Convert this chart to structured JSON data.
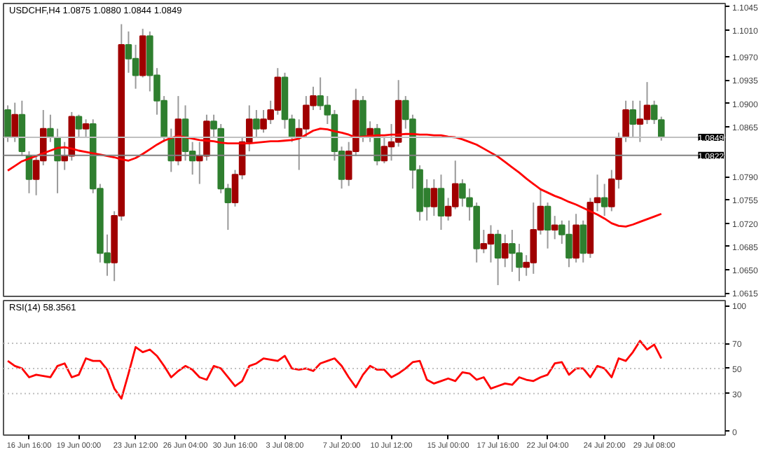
{
  "chart_data": [
    {
      "type": "candlestick",
      "title": "USDCHF,H4 1.0875 1.0880 1.0844 1.0849",
      "tick_labels": "y",
      "categories": [
        null,
        null,
        null,
        null,
        null,
        null,
        null,
        null,
        null,
        null,
        null,
        null,
        null,
        null,
        null,
        null,
        null,
        null,
        null,
        null,
        null,
        null,
        null,
        null,
        null,
        null,
        null,
        null,
        null,
        null,
        null,
        null,
        null,
        null,
        null,
        null,
        null,
        null,
        null,
        null,
        null,
        null,
        null,
        null,
        null,
        null,
        null,
        null,
        null,
        null,
        null,
        null,
        null,
        null,
        null,
        null,
        null,
        null,
        null,
        null,
        null,
        null,
        null,
        null,
        null,
        null,
        null,
        null,
        null,
        null,
        null,
        null,
        null,
        null,
        null,
        null,
        null,
        null,
        null,
        null,
        null,
        null,
        null,
        null,
        null,
        null,
        null,
        null,
        null,
        null,
        null,
        null,
        null
      ],
      "ylim": [
        1.0608,
        1.105
      ],
      "yticks": [
        {
          "value": 1.1045,
          "label": "1.1045"
        },
        {
          "value": 1.101,
          "label": "1.1010"
        },
        {
          "value": 1.097,
          "label": "1.0970"
        },
        {
          "value": 1.0935,
          "label": "1.0935"
        },
        {
          "value": 1.09,
          "label": "1.0900"
        },
        {
          "value": 1.0865,
          "label": "1.0865"
        },
        {
          "value": 1.079,
          "label": "1.0790"
        },
        {
          "value": 1.0755,
          "label": "1.0755"
        },
        {
          "value": 1.072,
          "label": "1.0720"
        },
        {
          "value": 1.0685,
          "label": "1.0685"
        },
        {
          "value": 1.065,
          "label": "1.0650"
        },
        {
          "value": 1.0615,
          "label": "1.0615"
        }
      ],
      "ohlc": [
        [
          1.089,
          1.0897,
          1.0842,
          1.0849
        ],
        [
          1.0849,
          1.0901,
          1.0842,
          1.0883
        ],
        [
          1.0883,
          1.0904,
          1.0821,
          1.0828
        ],
        [
          1.0821,
          1.0828,
          1.0765,
          1.0786
        ],
        [
          1.0786,
          1.0821,
          1.0762,
          1.0814
        ],
        [
          1.0814,
          1.089,
          1.0807,
          1.0862
        ],
        [
          1.0862,
          1.0883,
          1.0842,
          1.0849
        ],
        [
          1.0849,
          1.0862,
          1.0765,
          1.0814
        ],
        [
          1.0814,
          1.0842,
          1.08,
          1.0821
        ],
        [
          1.0821,
          1.0887,
          1.0814,
          1.088
        ],
        [
          1.088,
          1.0883,
          1.0849,
          1.0862
        ],
        [
          1.0862,
          1.0876,
          1.0849,
          1.0869
        ],
        [
          1.0869,
          1.0876,
          1.0765,
          1.0772
        ],
        [
          1.0772,
          1.0779,
          1.0661,
          1.0675
        ],
        [
          1.0675,
          1.0703,
          1.0641,
          1.0661
        ],
        [
          1.0661,
          1.0738,
          1.0633,
          1.0731
        ],
        [
          1.0731,
          1.1019,
          1.0724,
          1.0988
        ],
        [
          1.0988,
          1.1008,
          1.0946,
          1.0967
        ],
        [
          1.0967,
          1.0988,
          1.0922,
          1.0942
        ],
        [
          1.0942,
          1.1012,
          1.0939,
          1.1001
        ],
        [
          1.1001,
          1.1008,
          1.0918,
          1.0942
        ],
        [
          1.0942,
          1.0953,
          1.0883,
          1.0904
        ],
        [
          1.0904,
          1.0911,
          1.0842,
          1.0849
        ],
        [
          1.0849,
          1.0862,
          1.0797,
          1.0814
        ],
        [
          1.0814,
          1.0911,
          1.0807,
          1.0876
        ],
        [
          1.0876,
          1.0897,
          1.0814,
          1.0828
        ],
        [
          1.0828,
          1.0842,
          1.0793,
          1.0814
        ],
        [
          1.0814,
          1.0842,
          1.0779,
          1.0821
        ],
        [
          1.0821,
          1.0883,
          1.0814,
          1.0873
        ],
        [
          1.0873,
          1.0883,
          1.0849,
          1.0862
        ],
        [
          1.0862,
          1.0869,
          1.0765,
          1.0772
        ],
        [
          1.0772,
          1.0779,
          1.071,
          1.0751
        ],
        [
          1.0751,
          1.08,
          1.0745,
          1.0793
        ],
        [
          1.0793,
          1.0849,
          1.0786,
          1.0842
        ],
        [
          1.0842,
          1.0897,
          1.0828,
          1.0876
        ],
        [
          1.0876,
          1.089,
          1.0849,
          1.0862
        ],
        [
          1.0862,
          1.089,
          1.0856,
          1.0876
        ],
        [
          1.0876,
          1.0904,
          1.0869,
          1.089
        ],
        [
          1.089,
          1.0953,
          1.0883,
          1.0939
        ],
        [
          1.0939,
          1.0946,
          1.0862,
          1.0876
        ],
        [
          1.0876,
          1.0883,
          1.0842,
          1.0849
        ],
        [
          1.0849,
          1.0876,
          1.08,
          1.0862
        ],
        [
          1.0862,
          1.0911,
          1.0849,
          1.0897
        ],
        [
          1.0897,
          1.0925,
          1.089,
          1.0911
        ],
        [
          1.0911,
          1.0939,
          1.089,
          1.0897
        ],
        [
          1.0897,
          1.0911,
          1.0869,
          1.0883
        ],
        [
          1.0883,
          1.089,
          1.0814,
          1.0828
        ],
        [
          1.0828,
          1.0835,
          1.0772,
          1.0786
        ],
        [
          1.0786,
          1.0842,
          1.0776,
          1.0828
        ],
        [
          1.0828,
          1.0922,
          1.0821,
          1.0904
        ],
        [
          1.0904,
          1.0911,
          1.0842,
          1.0849
        ],
        [
          1.0849,
          1.0873,
          1.0842,
          1.0862
        ],
        [
          1.0862,
          1.0869,
          1.0807,
          1.0814
        ],
        [
          1.0814,
          1.0849,
          1.081,
          1.0835
        ],
        [
          1.0835,
          1.0869,
          1.0814,
          1.0842
        ],
        [
          1.0842,
          1.0935,
          1.0835,
          1.0904
        ],
        [
          1.0904,
          1.0911,
          1.0862,
          1.0876
        ],
        [
          1.0876,
          1.0883,
          1.0772,
          1.08
        ],
        [
          1.08,
          1.0807,
          1.0724,
          1.0738
        ],
        [
          1.0772,
          1.0786,
          1.0724,
          1.0745
        ],
        [
          1.0745,
          1.0786,
          1.0731,
          1.0772
        ],
        [
          1.0772,
          1.0793,
          1.071,
          1.0731
        ],
        [
          1.0731,
          1.0758,
          1.0724,
          1.0745
        ],
        [
          1.0745,
          1.0814,
          1.0741,
          1.0779
        ],
        [
          1.0779,
          1.0786,
          1.0745,
          1.0758
        ],
        [
          1.0758,
          1.0772,
          1.0724,
          1.0745
        ],
        [
          1.0745,
          1.0751,
          1.0661,
          1.0682
        ],
        [
          1.0682,
          1.071,
          1.0675,
          1.0689
        ],
        [
          1.0689,
          1.0717,
          1.0661,
          1.0703
        ],
        [
          1.0703,
          1.071,
          1.0627,
          1.0668
        ],
        [
          1.0668,
          1.0703,
          1.0654,
          1.0689
        ],
        [
          1.0689,
          1.071,
          1.0647,
          1.0675
        ],
        [
          1.0675,
          1.0689,
          1.0633,
          1.0654
        ],
        [
          1.0654,
          1.0672,
          1.0641,
          1.0661
        ],
        [
          1.0661,
          1.0751,
          1.0644,
          1.071
        ],
        [
          1.071,
          1.0772,
          1.0703,
          1.0745
        ],
        [
          1.0745,
          1.0751,
          1.0682,
          1.071
        ],
        [
          1.071,
          1.0731,
          1.0696,
          1.0717
        ],
        [
          1.0717,
          1.0724,
          1.0689,
          1.0703
        ],
        [
          1.0703,
          1.0724,
          1.0654,
          1.0668
        ],
        [
          1.0668,
          1.0734,
          1.0661,
          1.0717
        ],
        [
          1.0717,
          1.0724,
          1.0661,
          1.0675
        ],
        [
          1.0675,
          1.0758,
          1.0668,
          1.0751
        ],
        [
          1.0751,
          1.0793,
          1.0738,
          1.0758
        ],
        [
          1.0758,
          1.0779,
          1.0731,
          1.0745
        ],
        [
          1.0745,
          1.08,
          1.0738,
          1.0786
        ],
        [
          1.0786,
          1.0856,
          1.0772,
          1.0849
        ],
        [
          1.0849,
          1.0904,
          1.0842,
          1.089
        ],
        [
          1.089,
          1.0904,
          1.0849,
          1.0869
        ],
        [
          1.0869,
          1.0904,
          1.0842,
          1.0876
        ],
        [
          1.0876,
          1.0932,
          1.0869,
          1.0897
        ],
        [
          1.0897,
          1.0904,
          1.0869,
          1.0876
        ],
        [
          1.0875,
          1.088,
          1.0844,
          1.0849
        ]
      ],
      "series": [
        {
          "type": "line",
          "color": "#ff0000",
          "values": [
            1.0799,
            1.0806,
            1.0813,
            1.0817,
            1.0821,
            1.0825,
            1.0829,
            1.0833,
            1.0834,
            1.0832,
            1.0829,
            1.0827,
            1.0825,
            1.0823,
            1.0821,
            1.0819,
            1.0816,
            1.0814,
            1.0818,
            1.0824,
            1.0831,
            1.0838,
            1.0844,
            1.0848,
            1.0851,
            1.0849,
            1.0847,
            1.0845,
            1.0844,
            1.0843,
            1.0841,
            1.084,
            1.084,
            1.084,
            1.084,
            1.0841,
            1.0842,
            1.0843,
            1.0843,
            1.0844,
            1.0845,
            1.0847,
            1.0853,
            1.0859,
            1.0862,
            1.0861,
            1.0858,
            1.0856,
            1.0853,
            1.0849,
            1.085,
            1.0851,
            1.0852,
            1.0852,
            1.0853,
            1.0853,
            1.0854,
            1.0854,
            1.0853,
            1.0853,
            1.0852,
            1.0852,
            1.085,
            1.0849,
            1.0846,
            1.0842,
            1.0838,
            1.0832,
            1.0826,
            1.082,
            1.0812,
            1.0804,
            1.0796,
            1.0787,
            1.0779,
            1.0771,
            1.0766,
            1.0761,
            1.0757,
            1.0752,
            1.0748,
            1.0743,
            1.0738,
            1.0733,
            1.0727,
            1.072,
            1.0716,
            1.0715,
            1.0718,
            1.0722,
            1.0726,
            1.073,
            1.0734
          ]
        }
      ],
      "ref_lines": [
        {
          "axis": "y",
          "value": 1.0849,
          "label": "1.0849",
          "color": "#c0c0c0"
        },
        {
          "axis": "y",
          "value": 1.0822,
          "label": "1.0822",
          "color": "#808080"
        }
      ]
    },
    {
      "type": "line",
      "title": "RSI(14) 58.3561",
      "categories": [
        null,
        null,
        null,
        "16 Jun 16:00",
        null,
        null,
        null,
        null,
        null,
        null,
        "19 Jun 00:00",
        null,
        null,
        null,
        null,
        null,
        null,
        null,
        "23 Jun 12:00",
        null,
        null,
        null,
        null,
        null,
        null,
        "26 Jun 04:00",
        null,
        null,
        null,
        null,
        null,
        null,
        "30 Jun 16:00",
        null,
        null,
        null,
        null,
        null,
        null,
        "3 Jul 08:00",
        null,
        null,
        null,
        null,
        null,
        null,
        null,
        "7 Jul 20:00",
        null,
        null,
        null,
        null,
        null,
        null,
        "10 Jul 12:00",
        null,
        null,
        null,
        null,
        null,
        null,
        null,
        "15 Jul 00:00",
        null,
        null,
        null,
        null,
        null,
        null,
        "17 Jul 16:00",
        null,
        null,
        null,
        null,
        null,
        null,
        "22 Jul 04:00",
        null,
        null,
        null,
        null,
        null,
        null,
        null,
        "24 Jul 20:00",
        null,
        null,
        null,
        null,
        null,
        null,
        "29 Jul 08:00",
        null
      ],
      "ylim": [
        -3,
        104
      ],
      "yticks": [
        0,
        30,
        50,
        70,
        100
      ],
      "series": [
        {
          "color": "#ff0000",
          "values": [
            56,
            52,
            50,
            43,
            45,
            44,
            43,
            52,
            54,
            43,
            45,
            58,
            56,
            56,
            49,
            34,
            26,
            46,
            67,
            63,
            65,
            60,
            52,
            43,
            48,
            52,
            49,
            43,
            41,
            52,
            50,
            43,
            36,
            40,
            52,
            54,
            58,
            57,
            56,
            60,
            50,
            49,
            50,
            48,
            54,
            56,
            58,
            52,
            43,
            35,
            45,
            52,
            49,
            49,
            43,
            46,
            50,
            55,
            56,
            41,
            38,
            40,
            42,
            40,
            47,
            46,
            41,
            43,
            34,
            36,
            38,
            37,
            43,
            41,
            40,
            43,
            45,
            54,
            55,
            45,
            50,
            50,
            43,
            52,
            50,
            43,
            58,
            56,
            63,
            72,
            65,
            69,
            58
          ]
        }
      ],
      "ref_lines": [
        {
          "axis": "y",
          "value": 70,
          "color": "#c0c0c0",
          "line_style": "dotted"
        },
        {
          "axis": "y",
          "value": 50,
          "color": "#c0c0c0",
          "line_style": "dotted"
        },
        {
          "axis": "y",
          "value": 30,
          "color": "#c0c0c0",
          "line_style": "dotted"
        }
      ]
    }
  ]
}
